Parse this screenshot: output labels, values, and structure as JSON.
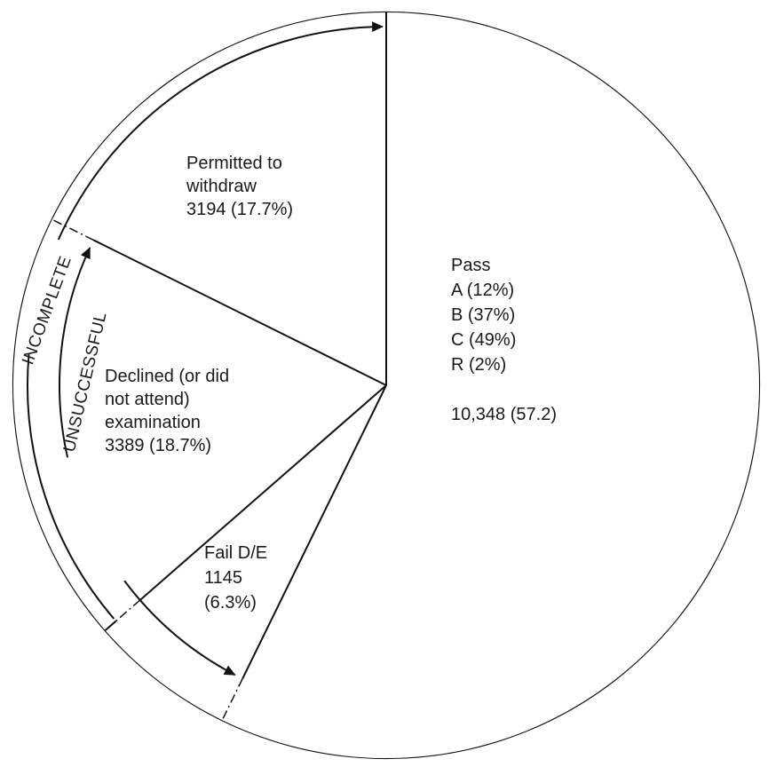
{
  "chart_data": {
    "type": "pie",
    "slices": [
      {
        "key": "pass",
        "value": 10348,
        "lines": [
          "Pass",
          "A (12%)",
          "B (37%)",
          "C (49%)",
          "R (2%)",
          "",
          "10,348 (57.2)"
        ]
      },
      {
        "key": "fail",
        "value": 1145,
        "lines": [
          "Fail D/E",
          "1145",
          "(6.3%)"
        ]
      },
      {
        "key": "declined",
        "value": 3389,
        "lines": [
          "Declined (or did",
          "not attend)",
          "examination",
          "3389 (18.7%)"
        ]
      },
      {
        "key": "withdraw",
        "value": 3194,
        "lines": [
          "Permitted to",
          "withdraw",
          "3194 (17.7%)"
        ]
      }
    ],
    "groups": [
      {
        "label": "INCOMPLETE",
        "spans": [
          "declined",
          "withdraw"
        ]
      },
      {
        "label": "UNSUCCESSFUL",
        "spans": [
          "fail",
          "declined"
        ]
      }
    ]
  }
}
